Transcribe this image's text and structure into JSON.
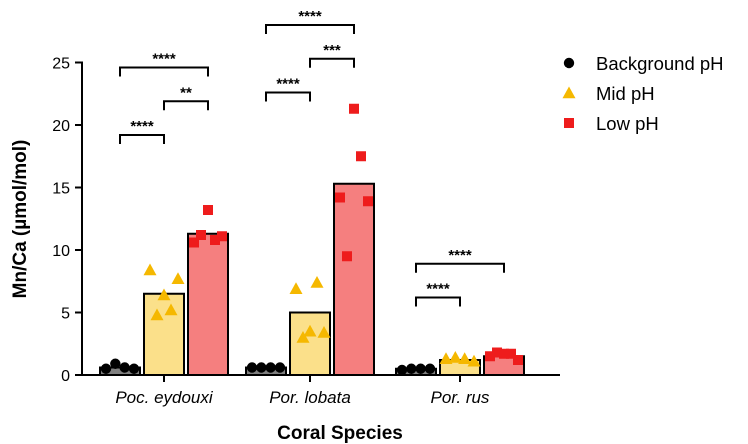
{
  "chart_data": {
    "type": "bar",
    "title": "",
    "xlabel": "Coral Species",
    "ylabel": "Mn/Ca (µmol/mol)",
    "ylim": [
      0,
      25
    ],
    "yticks": [
      0,
      5,
      10,
      15,
      20,
      25
    ],
    "categories": [
      "Poc. eydouxi",
      "Por. lobata",
      "Por. rus"
    ],
    "legend_position": "top-right",
    "series": [
      {
        "name": "Background pH",
        "color": "#808080",
        "marker": "circle",
        "marker_color": "#000000",
        "values": [
          0.6,
          0.6,
          0.5
        ],
        "points": [
          [
            0.5,
            0.9,
            0.6,
            0.5
          ],
          [
            0.6,
            0.6,
            0.6,
            0.6
          ],
          [
            0.4,
            0.5,
            0.5,
            0.5
          ]
        ]
      },
      {
        "name": "Mid pH",
        "color": "#fbe08a",
        "marker": "triangle",
        "marker_color": "#f5b800",
        "values": [
          6.5,
          5.0,
          1.2
        ],
        "points": [
          [
            8.4,
            4.8,
            6.4,
            5.2,
            7.7
          ],
          [
            6.9,
            3.0,
            3.5,
            7.4,
            3.4
          ],
          [
            1.3,
            1.4,
            1.3,
            1.1
          ]
        ]
      },
      {
        "name": "Low pH",
        "color": "#f57f7f",
        "marker": "square",
        "marker_color": "#ee1c1c",
        "values": [
          11.3,
          15.3,
          1.5
        ],
        "points": [
          [
            10.6,
            11.2,
            13.2,
            10.8,
            11.1
          ],
          [
            14.2,
            9.5,
            21.3,
            17.5,
            13.9
          ],
          [
            1.5,
            1.8,
            1.7,
            1.7,
            1.2
          ]
        ]
      }
    ],
    "significance": [
      {
        "category": 0,
        "from": 0,
        "to": 1,
        "label": "****",
        "y": 19.2
      },
      {
        "category": 0,
        "from": 1,
        "to": 2,
        "label": "**",
        "y": 21.9
      },
      {
        "category": 0,
        "from": 0,
        "to": 2,
        "label": "****",
        "y": 24.6
      },
      {
        "category": 1,
        "from": 0,
        "to": 1,
        "label": "****",
        "y": 22.6
      },
      {
        "category": 1,
        "from": 1,
        "to": 2,
        "label": "***",
        "y": 25.3
      },
      {
        "category": 1,
        "from": 0,
        "to": 2,
        "label": "****",
        "y": 28.0
      },
      {
        "category": 2,
        "from": 0,
        "to": 1,
        "label": "****",
        "y": 6.2
      },
      {
        "category": 2,
        "from": 0,
        "to": 2,
        "label": "****",
        "y": 8.9
      }
    ]
  }
}
